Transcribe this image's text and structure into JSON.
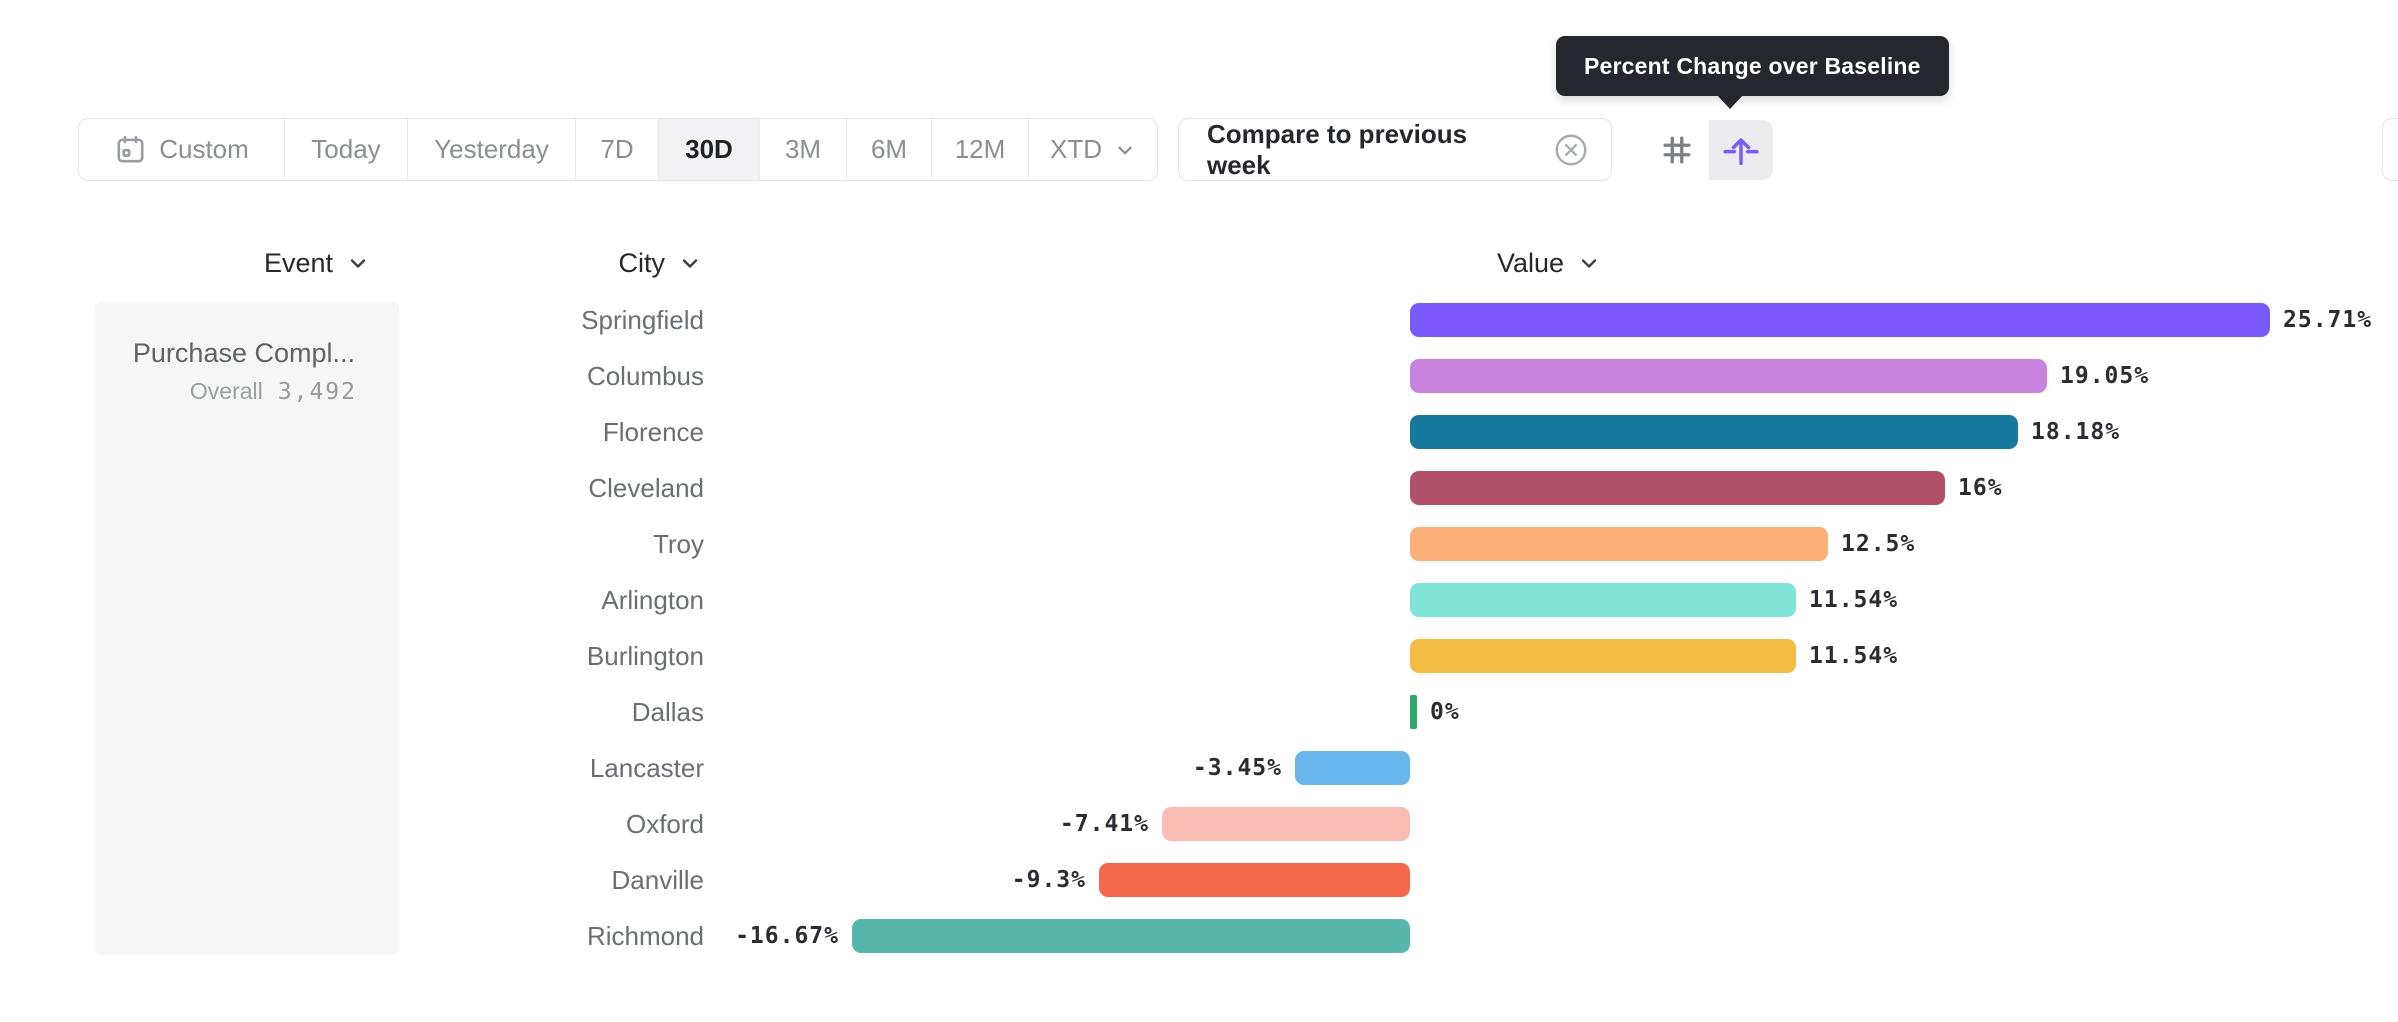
{
  "tooltip": {
    "text": "Percent Change over Baseline",
    "bg_color": "#26262e"
  },
  "toolbar": {
    "ranges": [
      {
        "label": "Custom",
        "icon": "calendar-icon",
        "active": false
      },
      {
        "label": "Today",
        "active": false
      },
      {
        "label": "Yesterday",
        "active": false
      },
      {
        "label": "7D",
        "active": false
      },
      {
        "label": "30D",
        "active": true
      },
      {
        "label": "3M",
        "active": false
      },
      {
        "label": "6M",
        "active": false
      },
      {
        "label": "12M",
        "active": false
      },
      {
        "label": "XTD",
        "icon": "chevron-down-icon",
        "active": false
      }
    ],
    "active_range": "30D",
    "compare_chip": {
      "label": "Compare to previous week",
      "close_icon": "circle-x-icon"
    },
    "view_toggle": {
      "options": [
        {
          "icon": "grid-icon",
          "selected": false
        },
        {
          "icon": "baseline-arrow-icon",
          "selected": true,
          "title": "Percent Change over Baseline"
        }
      ],
      "accent_color": "#7a5cf5"
    }
  },
  "columns": {
    "event": {
      "label": "Event",
      "sortable": true
    },
    "city": {
      "label": "City",
      "sortable": true
    },
    "value": {
      "label": "Value",
      "sortable": true
    }
  },
  "event_panel": {
    "event_name": "Purchase Compl...",
    "overall_label": "Overall",
    "overall_value": "3,492"
  },
  "chart_data": {
    "type": "bar",
    "orientation": "horizontal",
    "title": "Percent Change over Baseline",
    "xlabel": "Value",
    "ylabel": "City",
    "baseline": 0,
    "xlim": [
      -17,
      26
    ],
    "grid": false,
    "categories": [
      "Springfield",
      "Columbus",
      "Florence",
      "Cleveland",
      "Troy",
      "Arlington",
      "Burlington",
      "Dallas",
      "Lancaster",
      "Oxford",
      "Danville",
      "Richmond"
    ],
    "values": [
      25.71,
      19.05,
      18.18,
      16,
      12.5,
      11.54,
      11.54,
      0,
      -3.45,
      -7.41,
      -9.3,
      -16.67
    ],
    "labels": [
      "25.71%",
      "19.05%",
      "18.18%",
      "16%",
      "12.5%",
      "11.54%",
      "11.54%",
      "0%",
      "-3.45%",
      "-7.41%",
      "-9.3%",
      "-16.67%"
    ],
    "colors": [
      "#7a58fa",
      "#c783dd",
      "#17789e",
      "#b05169",
      "#fbb077",
      "#7fe3d6",
      "#f3bc45",
      "#2aa968",
      "#68b6ec",
      "#fbbcb4",
      "#f4694c",
      "#57b7ab"
    ]
  }
}
